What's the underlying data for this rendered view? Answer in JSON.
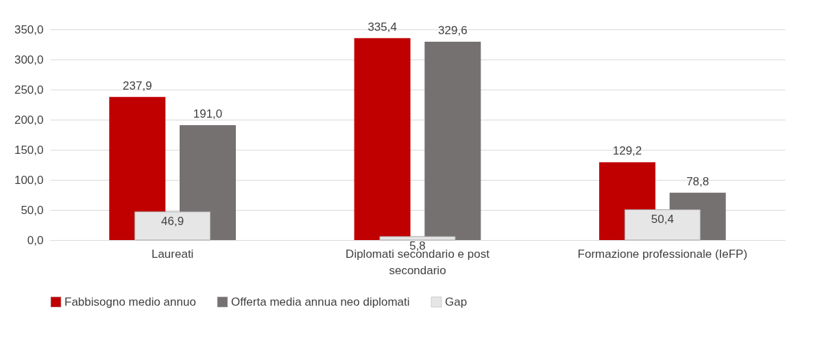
{
  "chart_data": {
    "type": "bar",
    "categories": [
      "Laureati",
      "Diplomati secondario e post secondario",
      "Formazione professionale (IeFP)"
    ],
    "series": [
      {
        "name": "Fabbisogno medio annuo",
        "color": "#c00000",
        "values": [
          237.9,
          335.4,
          129.2
        ],
        "value_labels": [
          "237,9",
          "335,4",
          "129,2"
        ]
      },
      {
        "name": "Offerta media annua neo diplomati",
        "color": "#767171",
        "values": [
          191.0,
          329.6,
          78.8
        ],
        "value_labels": [
          "191,0",
          "329,6",
          "78,8"
        ]
      },
      {
        "name": "Gap",
        "color": "#e7e6e6",
        "values": [
          46.9,
          5.8,
          50.4
        ],
        "value_labels": [
          "46,9",
          "5,8",
          "50,4"
        ]
      }
    ],
    "ylim": [
      0,
      350
    ],
    "yticks": [
      {
        "value": 0,
        "label": "0,0"
      },
      {
        "value": 50,
        "label": "50,0"
      },
      {
        "value": 100,
        "label": "100,0"
      },
      {
        "value": 150,
        "label": "150,0"
      },
      {
        "value": 200,
        "label": "200,0"
      },
      {
        "value": 250,
        "label": "250,0"
      },
      {
        "value": 300,
        "label": "300,0"
      },
      {
        "value": 350,
        "label": "350,0"
      }
    ],
    "grid": "y",
    "legend": "bottom"
  }
}
